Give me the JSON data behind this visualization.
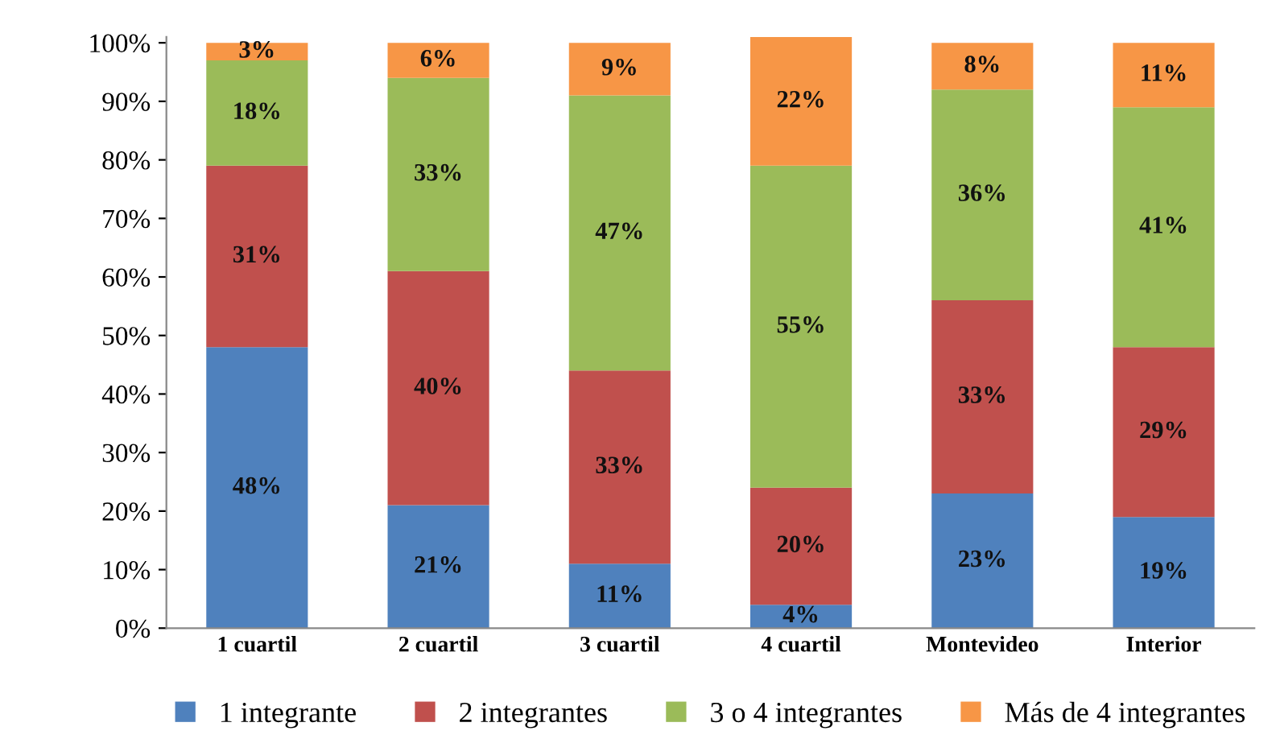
{
  "chart_data": {
    "type": "bar",
    "stacked": true,
    "categories": [
      "1 cuartil",
      "2 cuartil",
      "3 cuartil",
      "4 cuartil",
      "Montevideo",
      "Interior"
    ],
    "series": [
      {
        "name": "1 integrante",
        "color": "#4f81bd",
        "values": [
          48,
          21,
          11,
          4,
          23,
          19
        ],
        "value_labels": [
          "48%",
          "21%",
          "11%",
          "4%",
          "23%",
          "19%"
        ]
      },
      {
        "name": "2 integrantes",
        "color": "#c0504d",
        "values": [
          31,
          40,
          33,
          20,
          33,
          29
        ],
        "value_labels": [
          "31%",
          "40%",
          "33%",
          "20%",
          "33%",
          "29%"
        ]
      },
      {
        "name": "3 o 4 integrantes",
        "color": "#9bbb59",
        "values": [
          18,
          33,
          47,
          55,
          36,
          41
        ],
        "value_labels": [
          "18%",
          "33%",
          "47%",
          "55%",
          "36%",
          "41%"
        ]
      },
      {
        "name": "Más de 4 integrantes",
        "color": "#f79646",
        "values": [
          3,
          6,
          9,
          22,
          8,
          11
        ],
        "value_labels": [
          "3%",
          "6%",
          "9%",
          "22%",
          "8%",
          "11%"
        ]
      }
    ],
    "ylim": [
      0,
      101
    ],
    "yticks": [
      {
        "value": 0,
        "label": "0%"
      },
      {
        "value": 10,
        "label": "10%"
      },
      {
        "value": 20,
        "label": "20%"
      },
      {
        "value": 30,
        "label": "30%"
      },
      {
        "value": 40,
        "label": "40%"
      },
      {
        "value": 50,
        "label": "50%"
      },
      {
        "value": 60,
        "label": "60%"
      },
      {
        "value": 70,
        "label": "70%"
      },
      {
        "value": 80,
        "label": "80%"
      },
      {
        "value": 90,
        "label": "90%"
      },
      {
        "value": 100,
        "label": "100%"
      }
    ],
    "legend": "bottom",
    "grid": false
  }
}
